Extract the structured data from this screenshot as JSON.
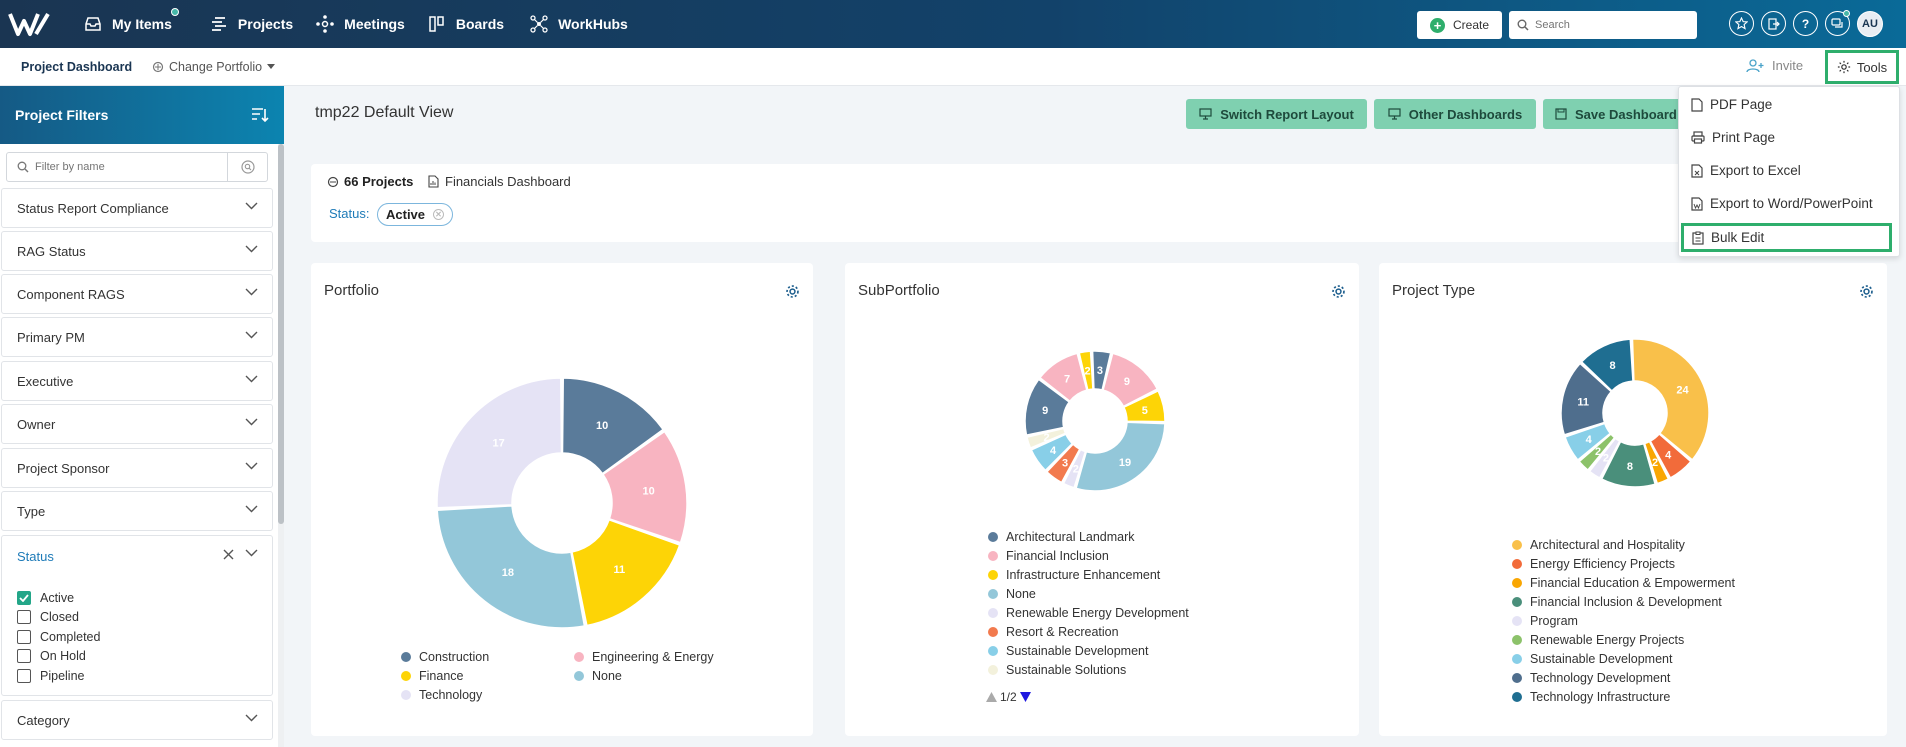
{
  "nav": {
    "items": [
      {
        "label": "My Items",
        "icon": "inbox-icon"
      },
      {
        "label": "Projects",
        "icon": "projects-icon"
      },
      {
        "label": "Meetings",
        "icon": "meetings-icon"
      },
      {
        "label": "Boards",
        "icon": "boards-icon"
      },
      {
        "label": "WorkHubs",
        "icon": "workhubs-icon"
      }
    ],
    "create_label": "Create",
    "search_placeholder": "Search",
    "avatar_initials": "AU"
  },
  "subbar": {
    "active_tab": "Project Dashboard",
    "change_portfolio": "Change Portfolio",
    "invite": "Invite",
    "tools": "Tools"
  },
  "sidebar": {
    "title": "Project Filters",
    "filter_placeholder": "Filter by name",
    "filters": [
      "Status Report Compliance",
      "RAG Status",
      "Component RAGS",
      "Primary PM",
      "Executive",
      "Owner",
      "Project Sponsor",
      "Type",
      "Status",
      "Category"
    ],
    "status_options": [
      {
        "label": "Active",
        "checked": true
      },
      {
        "label": "Closed",
        "checked": false
      },
      {
        "label": "Completed",
        "checked": false
      },
      {
        "label": "On Hold",
        "checked": false
      },
      {
        "label": "Pipeline",
        "checked": false
      }
    ]
  },
  "main": {
    "view_title": "tmp22 Default View",
    "buttons": {
      "switch_layout": "Switch Report Layout",
      "other_dashboards": "Other Dashboards",
      "save_dashboard": "Save Dashboard"
    },
    "project_count": "66 Projects",
    "dashboard_name": "Financials Dashboard",
    "status_label": "Status:",
    "status_chip": "Active"
  },
  "tools_menu": {
    "items": [
      "PDF Page",
      "Print Page",
      "Export to Excel",
      "Export to Word/PowerPoint",
      "Bulk Edit"
    ]
  },
  "colors": {
    "green_accent": "#2eae6c",
    "button_green": "#7fd0b0",
    "link_blue": "#1e7bb8"
  },
  "chart_data": [
    {
      "type": "pie",
      "title": "Portfolio",
      "labels": [
        "Construction",
        "Engineering & Energy",
        "Finance",
        "None",
        "Technology"
      ],
      "values": [
        10,
        10,
        11,
        18,
        17
      ],
      "colors": [
        "#5a7b9a",
        "#f8b4c1",
        "#fdd406",
        "#93c7d9",
        "#e5e3f5"
      ]
    },
    {
      "type": "pie",
      "title": "SubPortfolio",
      "labels": [
        "Architectural Landmark",
        "Financial Inclusion",
        "Infrastructure Enhancement",
        "None",
        "Renewable Energy Development",
        "Resort & Recreation",
        "Sustainable Development",
        "Sustainable Solutions"
      ],
      "segments": [
        {
          "value": 3,
          "color": "#5a7b9a"
        },
        {
          "value": 9,
          "color": "#f8b4c1"
        },
        {
          "value": 5,
          "color": "#fdd406"
        },
        {
          "value": 19,
          "color": "#93c7d9"
        },
        {
          "value": 2,
          "color": "#e5e3f5"
        },
        {
          "value": 3,
          "color": "#f27a4e"
        },
        {
          "value": 4,
          "color": "#88cfe8"
        },
        {
          "value": 2,
          "color": "#f3f1dc"
        },
        {
          "value": 9,
          "color": "#5a7b9a"
        },
        {
          "value": 7,
          "color": "#f8b4c1"
        },
        {
          "value": 2,
          "color": "#fdd406"
        }
      ],
      "legend_colors": [
        "#5a7b9a",
        "#f8b4c1",
        "#fdd406",
        "#93c7d9",
        "#e5e3f5",
        "#f27a4e",
        "#88cfe8",
        "#f3f1dc"
      ],
      "legend_page": "1/2"
    },
    {
      "type": "pie",
      "title": "Project Type",
      "labels": [
        "Architectural and Hospitality",
        "Energy Efficiency Projects",
        "Financial Education & Empowerment",
        "Financial Inclusion & Development",
        "Program",
        "Renewable Energy Projects",
        "Sustainable Development",
        "Technology Development",
        "Technology Infrastructure"
      ],
      "values": [
        24,
        4,
        2,
        8,
        2,
        2,
        4,
        11,
        8
      ],
      "colors": [
        "#f9c04a",
        "#f26b3a",
        "#f9a602",
        "#4a8f7b",
        "#e5e3f5",
        "#8cc26a",
        "#88cfe8",
        "#4f6e8d",
        "#1f6e91"
      ]
    }
  ]
}
